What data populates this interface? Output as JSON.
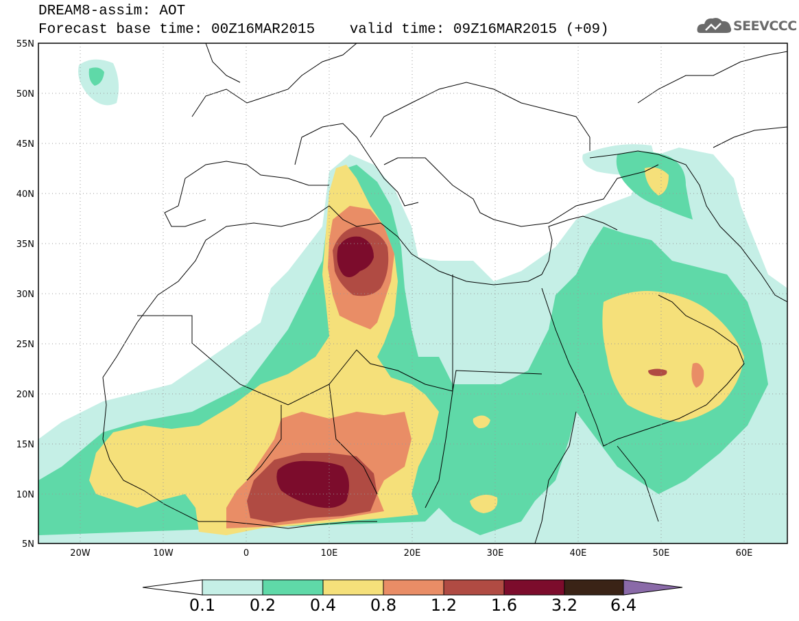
{
  "title": {
    "line1": "DREAM8-assim: AOT",
    "base": "Forecast base time: 00Z16MAR2015",
    "valid": "valid time: 09Z16MAR2015 (+09)"
  },
  "logo": {
    "text": "SEEVCCC",
    "icon": "cloud-logo-icon"
  },
  "map": {
    "lon_range": [
      -25,
      65
    ],
    "lat_range": [
      5,
      55
    ],
    "x_ticks": [
      "20W",
      "10W",
      "0",
      "10E",
      "20E",
      "30E",
      "40E",
      "50E",
      "60E"
    ],
    "y_ticks": [
      "55N",
      "50N",
      "45N",
      "40N",
      "35N",
      "30N",
      "25N",
      "20N",
      "15N",
      "10N",
      "5N"
    ],
    "grid": "dotted"
  },
  "colorbar": {
    "labels": [
      "0.1",
      "0.2",
      "0.4",
      "0.8",
      "1.2",
      "1.6",
      "3.2",
      "6.4"
    ],
    "colors": [
      "#c5efe6",
      "#5fd9a8",
      "#f5e07a",
      "#e98d66",
      "#b04b43",
      "#7c0c2c",
      "#3a2316",
      "#8a6aa8"
    ]
  },
  "colors": {
    "level1": "#c5efe6",
    "level2": "#5fd9a8",
    "level3": "#f5e07a",
    "level4": "#e98d66",
    "level5": "#b04b43",
    "level6": "#7c0c2c"
  }
}
